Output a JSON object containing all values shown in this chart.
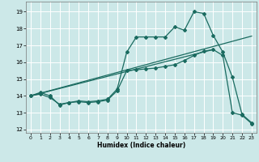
{
  "xlabel": "Humidex (Indice chaleur)",
  "background_color": "#cce8e8",
  "grid_color": "#ffffff",
  "line_color": "#1a6b60",
  "xlim": [
    -0.5,
    23.5
  ],
  "ylim": [
    11.8,
    19.6
  ],
  "yticks": [
    12,
    13,
    14,
    15,
    16,
    17,
    18,
    19
  ],
  "xticks": [
    0,
    1,
    2,
    3,
    4,
    5,
    6,
    7,
    8,
    9,
    10,
    11,
    12,
    13,
    14,
    15,
    16,
    17,
    18,
    19,
    20,
    21,
    22,
    23
  ],
  "series1_x": [
    0,
    1,
    2,
    3,
    4,
    5,
    6,
    7,
    8,
    9,
    10,
    11,
    12,
    13,
    14,
    15,
    16,
    17,
    18,
    19,
    20,
    21,
    22,
    23
  ],
  "series1_y": [
    14.0,
    14.2,
    14.0,
    13.45,
    13.6,
    13.7,
    13.65,
    13.7,
    13.8,
    14.4,
    16.6,
    17.5,
    17.5,
    17.5,
    17.5,
    18.1,
    17.9,
    19.0,
    18.9,
    17.6,
    16.6,
    15.1,
    12.9,
    12.4
  ],
  "series2_x": [
    0,
    1,
    2,
    3,
    4,
    5,
    6,
    7,
    8,
    9,
    10,
    11,
    12,
    13,
    14,
    15,
    16,
    17,
    18,
    19,
    20,
    21,
    22,
    23
  ],
  "series2_y": [
    14.0,
    14.1,
    13.9,
    13.5,
    13.6,
    13.65,
    13.6,
    13.65,
    13.75,
    14.3,
    15.5,
    15.55,
    15.6,
    15.65,
    15.75,
    15.85,
    16.1,
    16.4,
    16.65,
    16.75,
    16.4,
    13.0,
    12.85,
    12.35
  ],
  "series3_x": [
    0,
    23
  ],
  "series3_y": [
    14.0,
    17.55
  ],
  "series4_x": [
    0,
    19
  ],
  "series4_y": [
    14.0,
    16.75
  ]
}
